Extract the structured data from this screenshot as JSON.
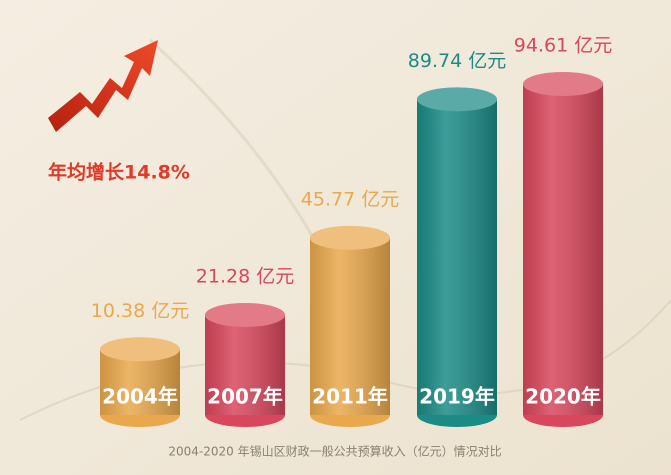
{
  "chart_data": {
    "type": "bar",
    "caption": "2004-2020 年锡山区财政一般公共预算收入（亿元）情况对比",
    "annotation": "年均增长14.8%",
    "categories": [
      "2004年",
      "2007年",
      "2011年",
      "2019年",
      "2020年"
    ],
    "values": [
      10.38,
      21.28,
      45.77,
      89.74,
      94.61
    ],
    "value_labels": [
      "10.38 亿元",
      "21.28 亿元",
      "45.77 亿元",
      "89.74 亿元",
      "94.61 亿元"
    ],
    "colors": [
      "#e9a84c",
      "#d8475b",
      "#e9a84c",
      "#1b8b85",
      "#d8475b"
    ]
  }
}
